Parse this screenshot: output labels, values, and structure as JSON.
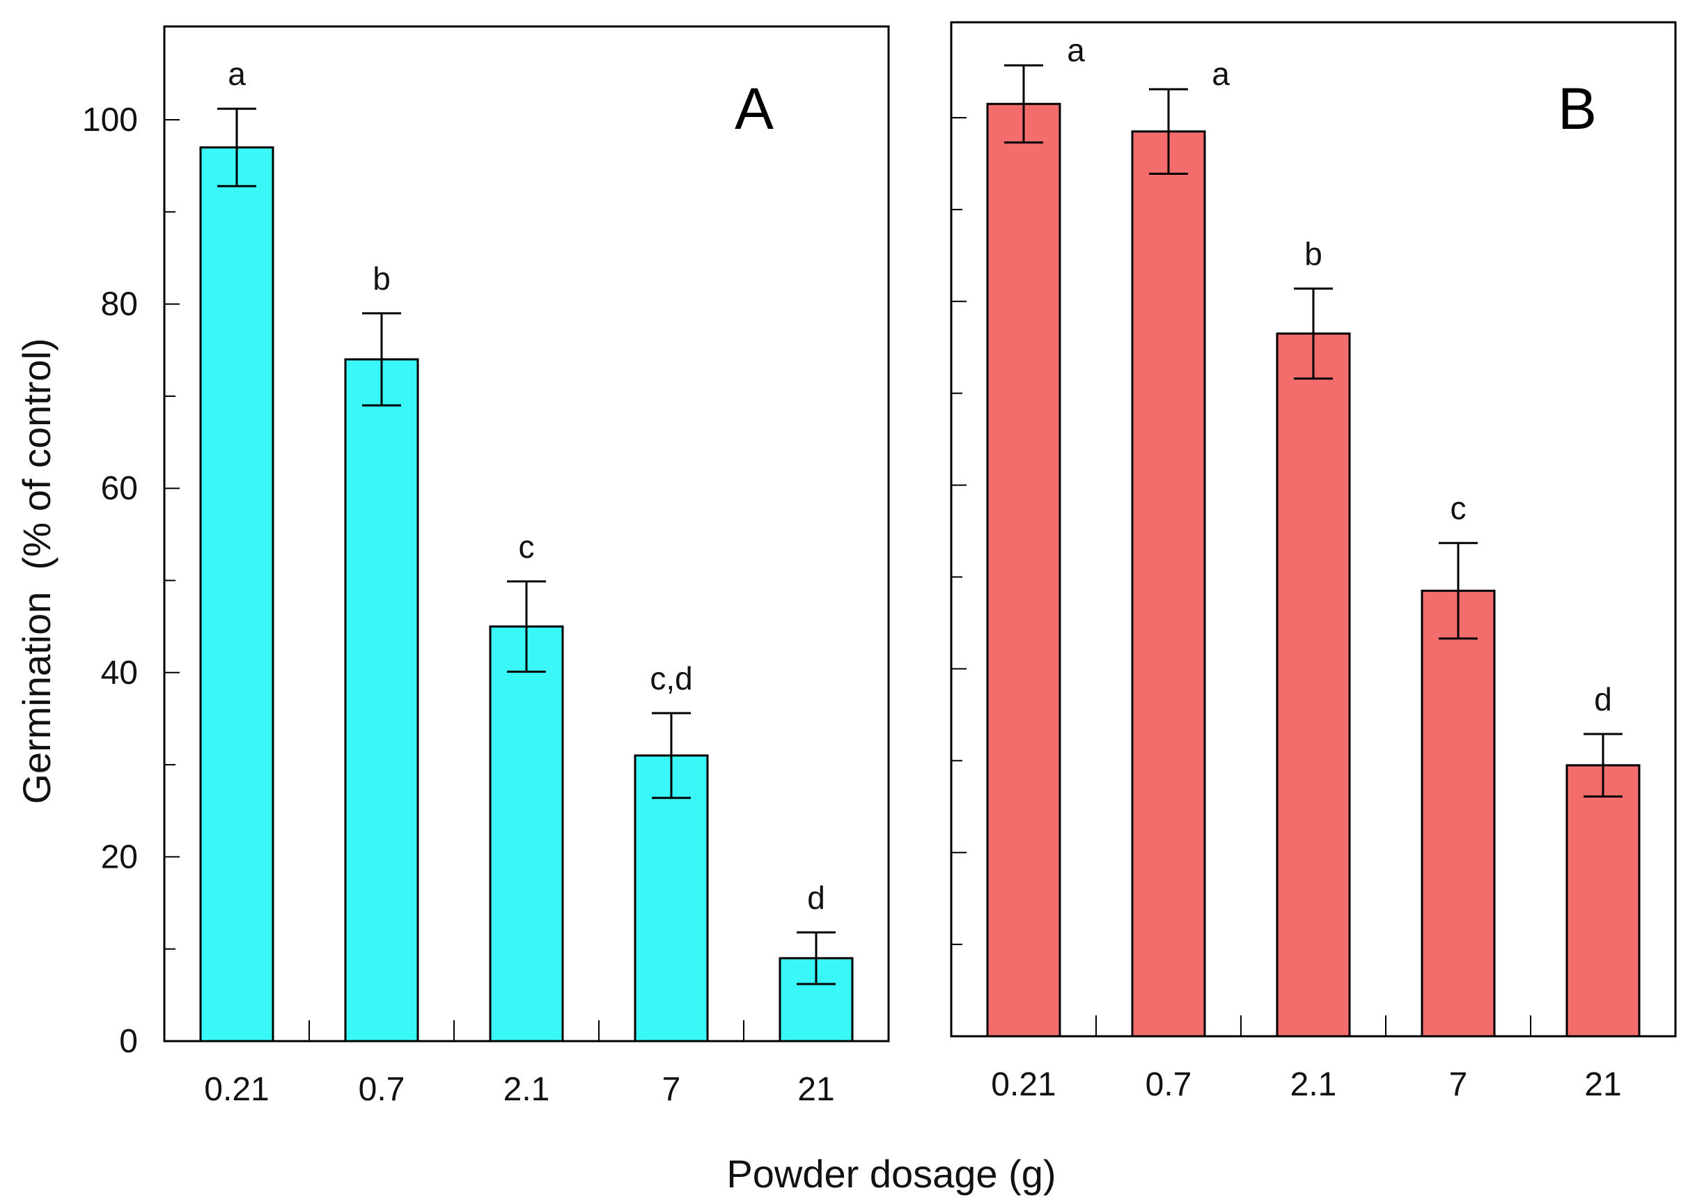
{
  "chart_data": [
    {
      "type": "bar",
      "panel_label": "A",
      "categories": [
        "0.21",
        "0.7",
        "2.1",
        "7",
        "21"
      ],
      "values": [
        97,
        74,
        45,
        31,
        9
      ],
      "error": [
        4.2,
        5.0,
        4.9,
        4.6,
        2.8
      ],
      "significance": [
        "a",
        "b",
        "c",
        "c,d",
        "d"
      ],
      "ylabel": "Germination  (% of control)",
      "ylim": [
        0,
        110
      ],
      "yticks": [
        0,
        20,
        40,
        60,
        80,
        100
      ],
      "bar_color": "#3af8f8"
    },
    {
      "type": "bar",
      "panel_label": "B",
      "categories": [
        "0.21",
        "0.7",
        "2.1",
        "7",
        "21"
      ],
      "values": [
        101.5,
        98.5,
        76.5,
        48.5,
        29.5
      ],
      "error": [
        4.2,
        4.6,
        4.9,
        5.2,
        3.4
      ],
      "significance": [
        "a",
        "a",
        "b",
        "c",
        "d"
      ],
      "ylim": [
        0,
        110
      ],
      "yticks": [
        0,
        20,
        40,
        60,
        80,
        100
      ],
      "bar_color": "#f46d6d"
    }
  ],
  "xlabel": "Powder dosage (g)"
}
